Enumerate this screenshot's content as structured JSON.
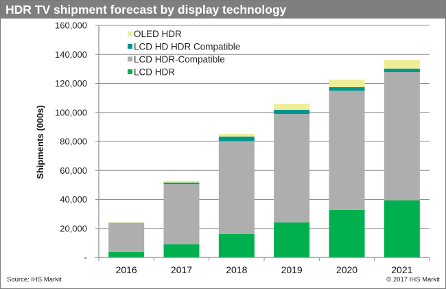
{
  "chart_data": {
    "type": "bar",
    "stacked": true,
    "title": "HDR TV shipment forecast by display technology",
    "xlabel": "",
    "ylabel": "Shipments (000s)",
    "ylim": [
      0,
      160000
    ],
    "yticks": [
      0,
      20000,
      40000,
      60000,
      80000,
      100000,
      120000,
      140000,
      160000
    ],
    "ytick_labels": [
      "-",
      "20,000",
      "40,000",
      "60,000",
      "80,000",
      "100,000",
      "120,000",
      "140,000",
      "160,000"
    ],
    "grid": true,
    "legend_position": "top-left",
    "categories": [
      "2016",
      "2017",
      "2018",
      "2019",
      "2020",
      "2021"
    ],
    "series": [
      {
        "name": "LCD HDR",
        "color": "#00b04f",
        "values": [
          3800,
          9000,
          16100,
          24100,
          32700,
          39300
        ]
      },
      {
        "name": "LCD HDR-Compatible",
        "color": "#aeaeae",
        "values": [
          20200,
          41600,
          64100,
          74800,
          82300,
          88500
        ]
      },
      {
        "name": "LCD HD HDR Compatible",
        "color": "#00968f",
        "values": [
          0,
          1000,
          3100,
          2900,
          2400,
          2400
        ]
      },
      {
        "name": "OLED HDR",
        "color": "#eeee99",
        "values": [
          200,
          1200,
          1900,
          4200,
          5200,
          6100
        ]
      }
    ],
    "legend_order": [
      "OLED HDR",
      "LCD HD HDR Compatible",
      "LCD HDR-Compatible",
      "LCD HDR"
    ]
  },
  "footer": {
    "source": "Source:  IHS Markit",
    "copyright": "© 2017  IHS Markit"
  }
}
